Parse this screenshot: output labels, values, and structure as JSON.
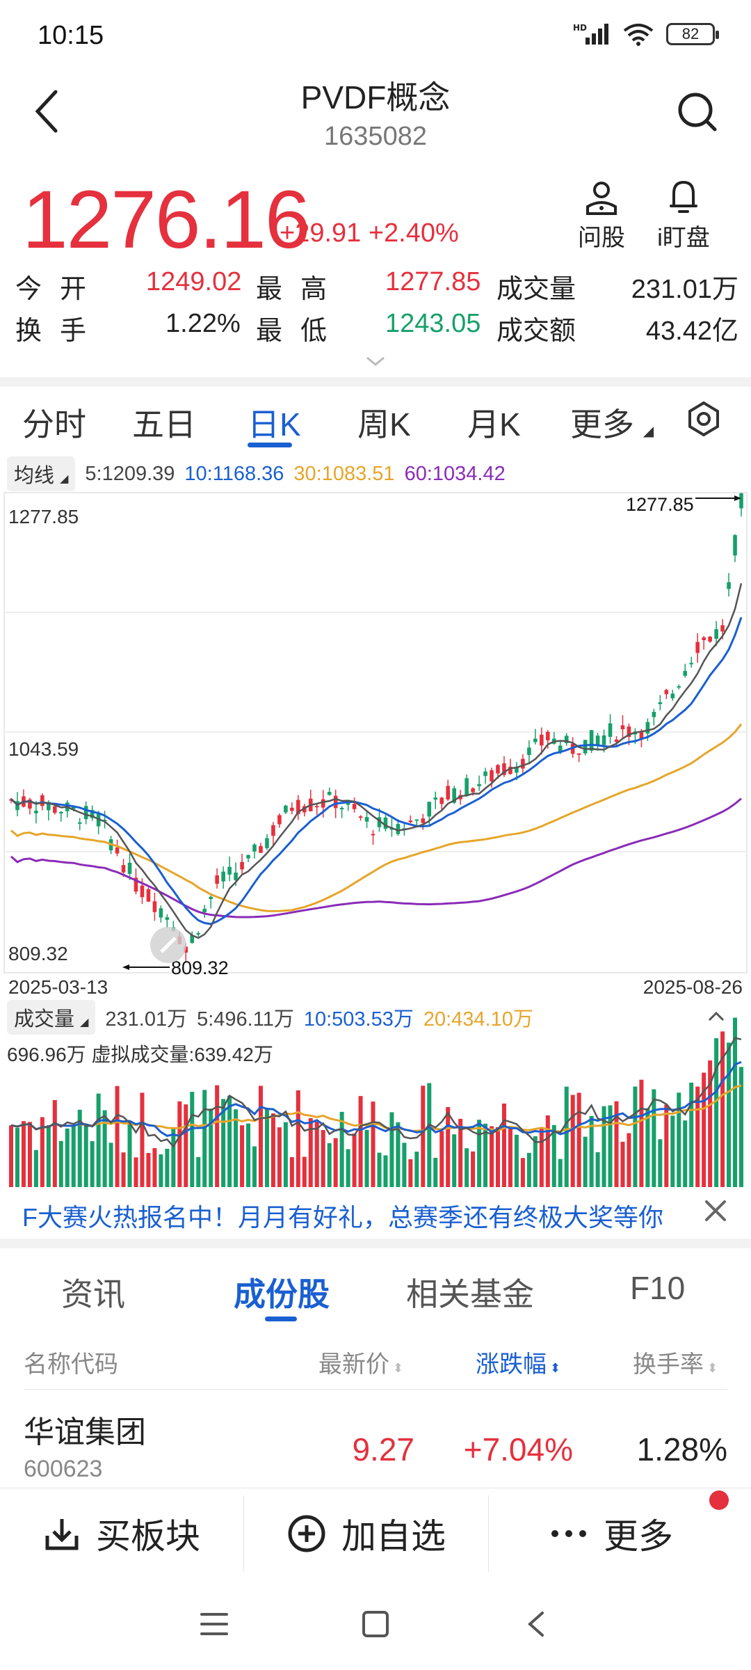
{
  "status": {
    "time": "10:15",
    "network": "HD",
    "battery": "82"
  },
  "header": {
    "title": "PVDF概念",
    "code": "1635082"
  },
  "quote": {
    "price": "1276.16",
    "change": "+29.91",
    "change_pct": "+2.40%",
    "actions": [
      {
        "label": "问股",
        "icon": "person-icon"
      },
      {
        "label": "i盯盘",
        "icon": "bell-icon"
      }
    ],
    "stats": [
      {
        "l1": "今",
        "l2": "开",
        "v1": "1249.02",
        "m1": "最",
        "m2": "高",
        "v2": "1277.85",
        "k": "成交量",
        "v3": "231.01万"
      },
      {
        "l1": "换",
        "l2": "手",
        "v1": "1.22%",
        "m1": "最",
        "m2": "低",
        "v2": "1243.05",
        "k": "成交额",
        "v3": "43.42亿"
      }
    ]
  },
  "kline_tabs": [
    "分时",
    "五日",
    "日K",
    "周K",
    "月K",
    "更多"
  ],
  "active_tab": "日K",
  "ma": {
    "label": "均线",
    "ma5": "5:1209.39",
    "ma10": "10:1168.36",
    "ma30": "30:1083.51",
    "ma60": "60:1034.42"
  },
  "chart": {
    "y_high": "1277.85",
    "y_mid": "1043.59",
    "y_low": "809.32",
    "high_mark": "1277.85",
    "low_mark": "809.32",
    "date_start": "2025-03-13",
    "date_end": "2025-08-26"
  },
  "volume": {
    "label": "成交量",
    "vol": "231.01万",
    "v5": "5:496.11万",
    "v10": "10:503.53万",
    "v20": "20:434.10万",
    "max": "696.96万",
    "virtual": "虚拟成交量:639.42万"
  },
  "banner": {
    "text": "F大赛火热报名中！月月有好礼，总赛季还有终极大奖等你"
  },
  "section_tabs": [
    "资讯",
    "成份股",
    "相关基金",
    "F10"
  ],
  "active_section": "成份股",
  "table": {
    "headers": [
      "名称代码",
      "最新价",
      "涨跌幅",
      "换手率"
    ],
    "rows": [
      {
        "name": "华谊集团",
        "code": "600623",
        "price": "9.27",
        "change": "+7.04%",
        "turnover": "1.28%"
      }
    ]
  },
  "bottom_bar": [
    {
      "label": "买板块",
      "icon": "download-icon"
    },
    {
      "label": "加自选",
      "icon": "plus-circle-icon"
    },
    {
      "label": "更多",
      "icon": "more-dots-icon"
    }
  ],
  "colors": {
    "up": "#e5303d",
    "down": "#16a06a",
    "accent": "#1a5fd1",
    "ma5": "#555555",
    "ma10": "#1a5fd1",
    "ma30": "#e6a52a",
    "ma60": "#8a2bb8"
  }
}
